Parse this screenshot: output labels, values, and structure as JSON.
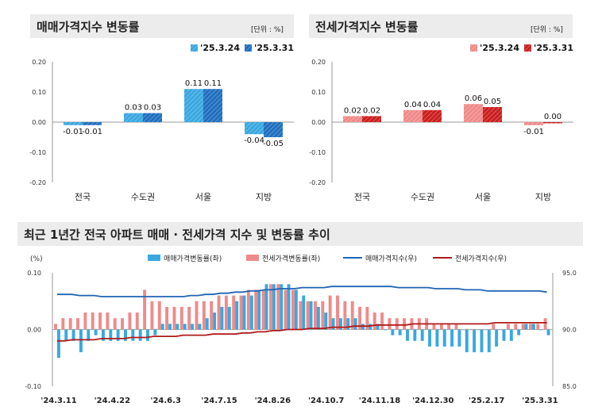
{
  "panels": {
    "sale": {
      "title": "매매가격지수 변동률",
      "unit": "[단위 : %]"
    },
    "jeonse": {
      "title": "전세가격지수 변동률",
      "unit": "[단위 : %]"
    },
    "trend": {
      "title": "최근 1년간 전국 아파트 매매 · 전세가격 지수 및 변동률 추이"
    }
  },
  "colors": {
    "sale_prev": "#3aa8e0",
    "sale_curr": "#1f6fbf",
    "jeonse_prev": "#f08a8a",
    "jeonse_curr": "#cc1f1f",
    "sale_line": "#1f63b5",
    "jeonse_line": "#b01a1a"
  },
  "chart_data": [
    {
      "type": "bar",
      "categories": [
        "전국",
        "수도권",
        "서울",
        "지방"
      ],
      "series": [
        {
          "name": "'25.3.24",
          "values": [
            -0.01,
            0.03,
            0.11,
            -0.04
          ]
        },
        {
          "name": "'25.3.31",
          "values": [
            -0.01,
            0.03,
            0.11,
            -0.05
          ]
        }
      ],
      "ylim": [
        -0.2,
        0.2
      ],
      "yticks": [
        "0.20",
        "0.10",
        "0.00",
        "-0.10",
        "-0.20"
      ],
      "value_labels": [
        [
          "-0.01",
          "0.03",
          "0.11",
          "-0.04"
        ],
        [
          "-0.01",
          "0.03",
          "0.11",
          "-0.05"
        ]
      ],
      "legend": "top-right"
    },
    {
      "type": "bar",
      "categories": [
        "전국",
        "수도권",
        "서울",
        "지방"
      ],
      "series": [
        {
          "name": "'25.3.24",
          "values": [
            0.02,
            0.04,
            0.06,
            -0.01
          ]
        },
        {
          "name": "'25.3.31",
          "values": [
            0.02,
            0.04,
            0.05,
            0.0
          ]
        }
      ],
      "ylim": [
        -0.2,
        0.2
      ],
      "yticks": [
        "0.20",
        "0.10",
        "0.00",
        "-0.10",
        "-0.20"
      ],
      "value_labels": [
        [
          "0.02",
          "0.04",
          "0.06",
          "-0.01"
        ],
        [
          "0.02",
          "0.04",
          "0.05",
          "0.00"
        ]
      ],
      "legend": "top-right"
    },
    {
      "type": "bar",
      "ylabel_left": "(%)",
      "ylim_left": [
        -0.1,
        0.1
      ],
      "ylim_right": [
        85.0,
        95.0
      ],
      "yticks_left": [
        "0.10",
        "0.00",
        "-0.10"
      ],
      "yticks_right": [
        "95.0",
        "90.0",
        "85.0"
      ],
      "x_ticks": [
        "'24.3.11",
        "'24.4.22",
        "'24.6.3",
        "'24.7.15",
        "'24.8.26",
        "'24.10.7",
        "'24.11.18",
        "'24.12.30",
        "'25.2.17",
        "'25.3.31"
      ],
      "legend_items": [
        "매매가격변동률(좌)",
        "전세가격변동률(좌)",
        "매매가격지수(우)",
        "전세가격지수(우)"
      ],
      "series": [
        {
          "name": "매매가격변동률(좌)",
          "kind": "bar",
          "values": [
            -0.05,
            -0.02,
            -0.02,
            -0.04,
            -0.02,
            -0.01,
            -0.02,
            -0.02,
            -0.02,
            -0.02,
            -0.02,
            -0.02,
            -0.02,
            -0.01,
            0.01,
            0.01,
            0.01,
            0.01,
            0.01,
            0.01,
            0.02,
            0.03,
            0.04,
            0.04,
            0.05,
            0.06,
            0.06,
            0.07,
            0.08,
            0.08,
            0.08,
            0.08,
            0.07,
            0.06,
            0.05,
            0.04,
            0.03,
            0.02,
            0.02,
            0.02,
            0.02,
            0.01,
            0.01,
            0.01,
            0.0,
            -0.01,
            -0.01,
            -0.02,
            -0.02,
            -0.02,
            -0.03,
            -0.03,
            -0.03,
            -0.03,
            -0.03,
            -0.04,
            -0.04,
            -0.04,
            -0.04,
            -0.03,
            -0.02,
            -0.02,
            -0.01,
            0.01,
            0.01,
            0.0,
            -0.01
          ]
        },
        {
          "name": "전세가격변동률(좌)",
          "kind": "bar",
          "values": [
            0.01,
            0.02,
            0.02,
            0.02,
            0.03,
            0.03,
            0.03,
            0.03,
            0.02,
            0.02,
            0.03,
            0.03,
            0.07,
            0.05,
            0.05,
            0.04,
            0.04,
            0.04,
            0.04,
            0.05,
            0.05,
            0.05,
            0.06,
            0.06,
            0.06,
            0.06,
            0.07,
            0.07,
            0.07,
            0.08,
            0.08,
            0.07,
            0.07,
            0.05,
            0.05,
            0.05,
            0.05,
            0.06,
            0.06,
            0.05,
            0.05,
            0.04,
            0.04,
            0.03,
            0.03,
            0.02,
            0.02,
            0.02,
            0.02,
            0.02,
            0.02,
            0.01,
            0.01,
            0.01,
            0.01,
            0.0,
            0.0,
            0.0,
            0.0,
            0.01,
            0.0,
            0.01,
            0.01,
            0.01,
            0.01,
            0.01,
            0.02
          ]
        },
        {
          "name": "매매가격지수(우)",
          "kind": "line",
          "values": [
            93.1,
            93.1,
            93.1,
            93.0,
            93.0,
            93.0,
            92.9,
            92.9,
            92.9,
            92.9,
            92.9,
            92.9,
            92.9,
            92.9,
            92.9,
            92.9,
            92.9,
            92.9,
            93.0,
            93.0,
            93.1,
            93.1,
            93.2,
            93.2,
            93.3,
            93.3,
            93.4,
            93.4,
            93.5,
            93.5,
            93.6,
            93.6,
            93.6,
            93.7,
            93.7,
            93.7,
            93.7,
            93.8,
            93.8,
            93.8,
            93.8,
            93.8,
            93.8,
            93.8,
            93.8,
            93.8,
            93.7,
            93.7,
            93.7,
            93.7,
            93.7,
            93.6,
            93.6,
            93.6,
            93.6,
            93.5,
            93.5,
            93.5,
            93.4,
            93.4,
            93.4,
            93.4,
            93.4,
            93.4,
            93.4,
            93.4,
            93.3
          ]
        },
        {
          "name": "전세가격지수(우)",
          "kind": "line",
          "values": [
            89.0,
            89.0,
            89.1,
            89.1,
            89.1,
            89.1,
            89.2,
            89.2,
            89.2,
            89.2,
            89.3,
            89.3,
            89.3,
            89.4,
            89.4,
            89.4,
            89.4,
            89.5,
            89.5,
            89.5,
            89.5,
            89.6,
            89.6,
            89.6,
            89.6,
            89.7,
            89.7,
            89.8,
            89.8,
            89.9,
            89.9,
            90.0,
            90.0,
            90.0,
            90.1,
            90.1,
            90.1,
            90.2,
            90.2,
            90.2,
            90.3,
            90.3,
            90.3,
            90.4,
            90.4,
            90.4,
            90.4,
            90.4,
            90.5,
            90.5,
            90.5,
            90.5,
            90.5,
            90.5,
            90.5,
            90.5,
            90.5,
            90.5,
            90.5,
            90.6,
            90.6,
            90.6,
            90.6,
            90.6,
            90.6,
            90.6,
            90.6
          ]
        }
      ]
    }
  ]
}
